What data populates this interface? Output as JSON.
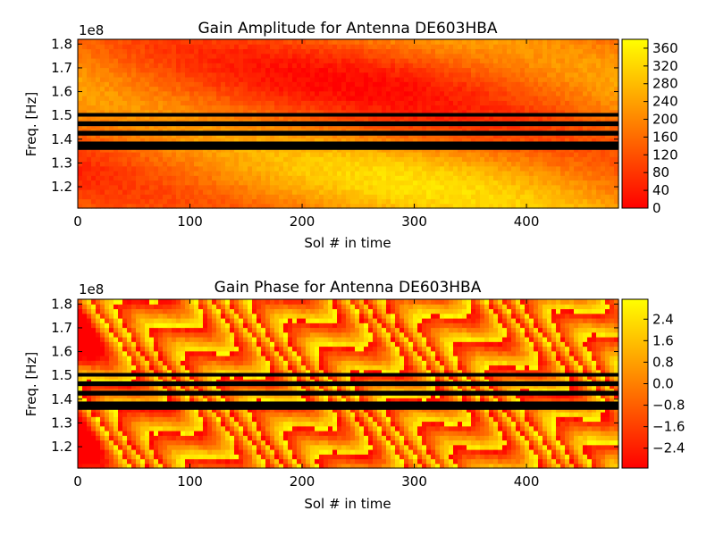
{
  "chart_data": [
    {
      "type": "heatmap",
      "title": "Gain Amplitude for Antenna DE603HBA",
      "xlabel": "Sol # in time",
      "ylabel": "Freq. [Hz]",
      "y_offset_label": "1e8",
      "xlim": [
        0,
        482
      ],
      "ylim": [
        1.11,
        1.82
      ],
      "x_ticks": [
        0,
        100,
        200,
        300,
        400
      ],
      "x_tick_labels": [
        "0",
        "100",
        "200",
        "300",
        "400"
      ],
      "y_ticks": [
        1.2,
        1.3,
        1.4,
        1.5,
        1.6,
        1.7,
        1.8
      ],
      "y_tick_labels": [
        "1.2",
        "1.3",
        "1.4",
        "1.5",
        "1.6",
        "1.7",
        "1.8"
      ],
      "colormap": "autumn",
      "colormap_colors": [
        "#ff0000",
        "#ffff00"
      ],
      "clim": [
        0,
        380
      ],
      "colorbar_ticks": [
        0,
        40,
        80,
        120,
        160,
        200,
        240,
        280,
        320,
        360
      ],
      "colorbar_tick_labels": [
        "0",
        "40",
        "80",
        "120",
        "160",
        "200",
        "240",
        "280",
        "320",
        "360"
      ],
      "flagged_bands_hz_e8": [
        [
          1.355,
          1.39
        ],
        [
          1.415,
          1.435
        ],
        [
          1.455,
          1.475
        ],
        [
          1.495,
          1.51
        ]
      ],
      "flag_color": "#000000"
    },
    {
      "type": "heatmap",
      "title": "Gain Phase for Antenna DE603HBA",
      "xlabel": "Sol # in time",
      "ylabel": "Freq. [Hz]",
      "y_offset_label": "1e8",
      "xlim": [
        0,
        482
      ],
      "ylim": [
        1.11,
        1.82
      ],
      "x_ticks": [
        0,
        100,
        200,
        300,
        400
      ],
      "x_tick_labels": [
        "0",
        "100",
        "200",
        "300",
        "400"
      ],
      "y_ticks": [
        1.2,
        1.3,
        1.4,
        1.5,
        1.6,
        1.7,
        1.8
      ],
      "y_tick_labels": [
        "1.2",
        "1.3",
        "1.4",
        "1.5",
        "1.6",
        "1.7",
        "1.8"
      ],
      "colormap": "autumn",
      "colormap_colors": [
        "#ff0000",
        "#ffff00"
      ],
      "clim": [
        -3.14,
        3.14
      ],
      "colorbar_ticks": [
        -2.4,
        -1.6,
        -0.8,
        0.0,
        0.8,
        1.6,
        2.4
      ],
      "colorbar_tick_labels": [
        "−2.4",
        "−1.6",
        "−0.8",
        "0.0",
        "0.8",
        "1.6",
        "2.4"
      ],
      "flagged_bands_hz_e8": [
        [
          1.355,
          1.39
        ],
        [
          1.415,
          1.435
        ],
        [
          1.455,
          1.475
        ],
        [
          1.495,
          1.51
        ]
      ],
      "flag_color": "#000000"
    }
  ]
}
